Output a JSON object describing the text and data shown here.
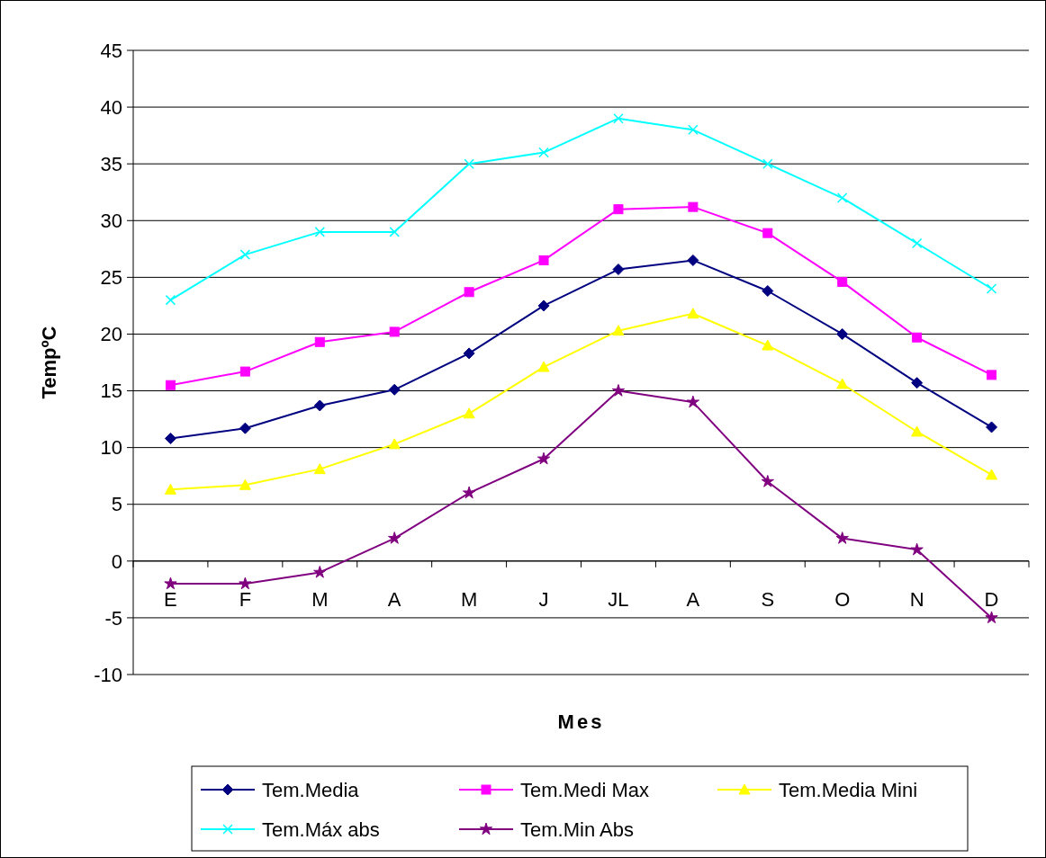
{
  "chart_data": {
    "type": "line",
    "xlabel": "Mes",
    "ylabel": "TempºC",
    "categories": [
      "E",
      "F",
      "M",
      "A",
      "M",
      "J",
      "JL",
      "A",
      "S",
      "O",
      "N",
      "D"
    ],
    "ylim": [
      -10,
      45
    ],
    "yticks": [
      -10,
      -5,
      0,
      5,
      10,
      15,
      20,
      25,
      30,
      35,
      40,
      45
    ],
    "grid": "y",
    "legend": "bottom",
    "series": [
      {
        "name": "Tem.Media",
        "color": "#000080",
        "marker": "diamond",
        "values": [
          10.8,
          11.7,
          13.7,
          15.1,
          18.3,
          22.5,
          25.7,
          26.5,
          23.8,
          20.0,
          15.7,
          11.8
        ]
      },
      {
        "name": "Tem.Medi Max",
        "color": "#ff00ff",
        "marker": "square",
        "values": [
          15.5,
          16.7,
          19.3,
          20.2,
          23.7,
          26.5,
          31.0,
          31.2,
          28.9,
          24.6,
          19.7,
          16.4
        ]
      },
      {
        "name": "Tem.Media Mini",
        "color": "#ffff00",
        "marker": "triangle",
        "values": [
          6.3,
          6.7,
          8.1,
          10.3,
          13.0,
          17.1,
          20.3,
          21.8,
          19.0,
          15.6,
          11.4,
          7.6
        ]
      },
      {
        "name": "Tem.Máx abs",
        "color": "#00ffff",
        "marker": "cross",
        "values": [
          23,
          27,
          29,
          29,
          35,
          36,
          39,
          38,
          35,
          32,
          28,
          24
        ]
      },
      {
        "name": "Tem.Min Abs",
        "color": "#800080",
        "marker": "star",
        "values": [
          -2,
          -2,
          -1,
          2,
          6,
          9,
          15,
          14,
          7,
          2,
          1,
          -5
        ]
      }
    ]
  }
}
